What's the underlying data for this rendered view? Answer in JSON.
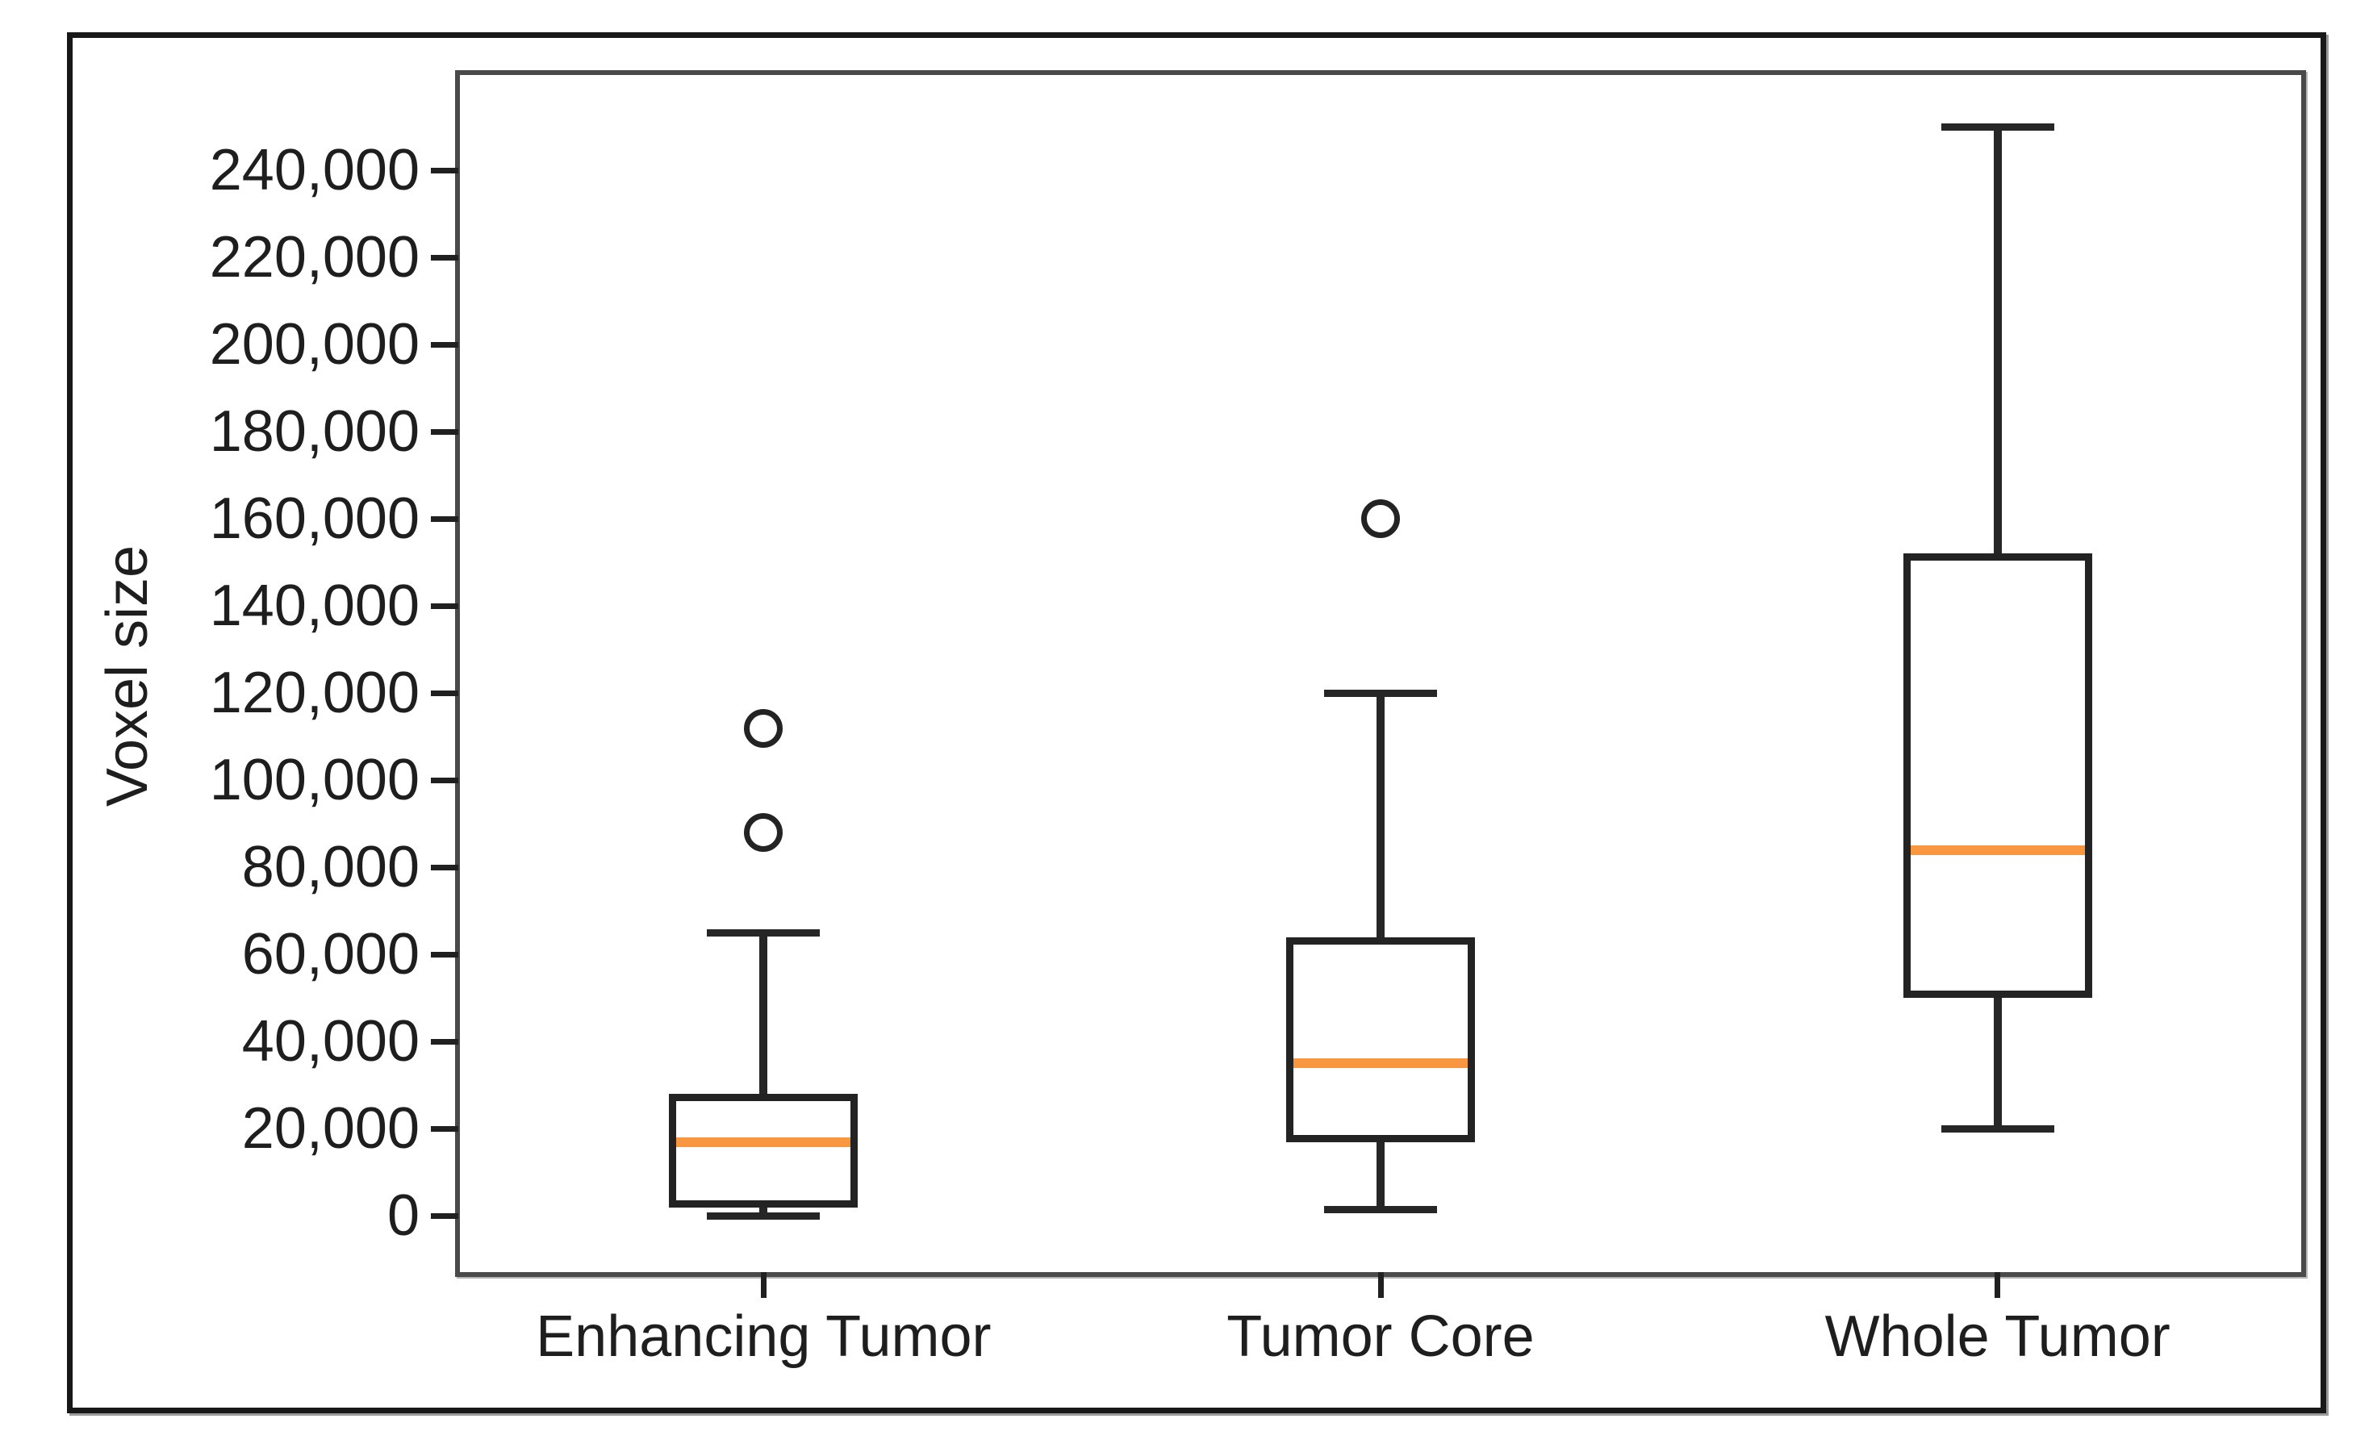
{
  "figure": {
    "ylabel": "Voxel size",
    "x_axis": {
      "categories": [
        "Enhancing Tumor",
        "Tumor Core",
        "Whole Tumor"
      ]
    },
    "y_axis": {
      "tick_labels": [
        "0",
        "20,000",
        "40,000",
        "60,000",
        "80,000",
        "100,000",
        "120,000",
        "140,000",
        "160,000",
        "180,000",
        "200,000",
        "220,000",
        "240,000"
      ]
    }
  },
  "chart_data": {
    "type": "boxplot",
    "title": "",
    "xlabel": "",
    "ylabel": "Voxel size",
    "categories": [
      "Enhancing Tumor",
      "Tumor Core",
      "Whole Tumor"
    ],
    "series": [
      {
        "name": "Enhancing Tumor",
        "whisker_low": 0,
        "q1": 2000,
        "median": 17000,
        "q3": 28000,
        "whisker_high": 65000,
        "outliers": [
          88000,
          112000
        ]
      },
      {
        "name": "Tumor Core",
        "whisker_low": 1500,
        "q1": 17000,
        "median": 35000,
        "q3": 64000,
        "whisker_high": 120000,
        "outliers": [
          160000
        ]
      },
      {
        "name": "Whole Tumor",
        "whisker_low": 20000,
        "q1": 50000,
        "median": 84000,
        "q3": 152000,
        "whisker_high": 250000,
        "outliers": []
      }
    ],
    "yticks": [
      0,
      20000,
      40000,
      60000,
      80000,
      100000,
      120000,
      140000,
      160000,
      180000,
      200000,
      220000,
      240000
    ],
    "ytick_labels": [
      "0",
      "20,000",
      "40,000",
      "60,000",
      "80,000",
      "100,000",
      "120,000",
      "140,000",
      "160,000",
      "180,000",
      "200,000",
      "220,000",
      "240,000"
    ],
    "ylim": [
      -14000,
      263000
    ],
    "grid": false,
    "legend": null
  },
  "colors": {
    "median_line": "#f99640",
    "box_stroke": "#232323",
    "whisker": "#262626",
    "spine": "#4a4a4a",
    "tick": "#202020",
    "text": "#1e1e1e",
    "figure_border": "#181818",
    "background": "#ffffff"
  }
}
